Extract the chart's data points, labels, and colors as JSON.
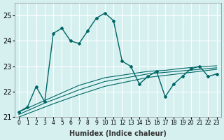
{
  "title": "",
  "xlabel": "Humidex (Indice chaleur)",
  "ylabel": "",
  "bg_color": "#d6f0f0",
  "grid_color": "#ffffff",
  "line_color": "#006666",
  "x": [
    0,
    1,
    2,
    3,
    4,
    5,
    6,
    7,
    8,
    9,
    10,
    11,
    12,
    13,
    14,
    15,
    16,
    17,
    18,
    19,
    20,
    21,
    22,
    23
  ],
  "y_main": [
    21.2,
    21.4,
    22.2,
    21.6,
    24.3,
    24.5,
    24.0,
    23.9,
    24.4,
    24.9,
    25.1,
    24.8,
    23.2,
    23.0,
    22.3,
    22.6,
    22.8,
    21.8,
    22.3,
    22.6,
    22.9,
    23.0,
    22.6,
    22.7
  ],
  "y_trend1": [
    21.2,
    21.35,
    21.5,
    21.65,
    21.8,
    21.95,
    22.1,
    22.25,
    22.35,
    22.45,
    22.55,
    22.6,
    22.65,
    22.7,
    22.75,
    22.8,
    22.82,
    22.84,
    22.88,
    22.92,
    22.95,
    22.98,
    23.0,
    23.02
  ],
  "y_trend2": [
    21.1,
    21.25,
    21.4,
    21.55,
    21.68,
    21.81,
    21.94,
    22.07,
    22.18,
    22.29,
    22.4,
    22.46,
    22.52,
    22.58,
    22.64,
    22.7,
    22.73,
    22.76,
    22.79,
    22.82,
    22.85,
    22.88,
    22.91,
    22.94
  ],
  "y_trend3": [
    21.0,
    21.13,
    21.26,
    21.39,
    21.52,
    21.64,
    21.76,
    21.88,
    21.99,
    22.1,
    22.21,
    22.28,
    22.35,
    22.42,
    22.49,
    22.56,
    22.6,
    22.64,
    22.68,
    22.72,
    22.76,
    22.8,
    22.84,
    22.88
  ],
  "ylim": [
    21.0,
    25.5
  ],
  "yticks": [
    21,
    22,
    23,
    24,
    25
  ],
  "xlim": [
    -0.5,
    23.5
  ]
}
